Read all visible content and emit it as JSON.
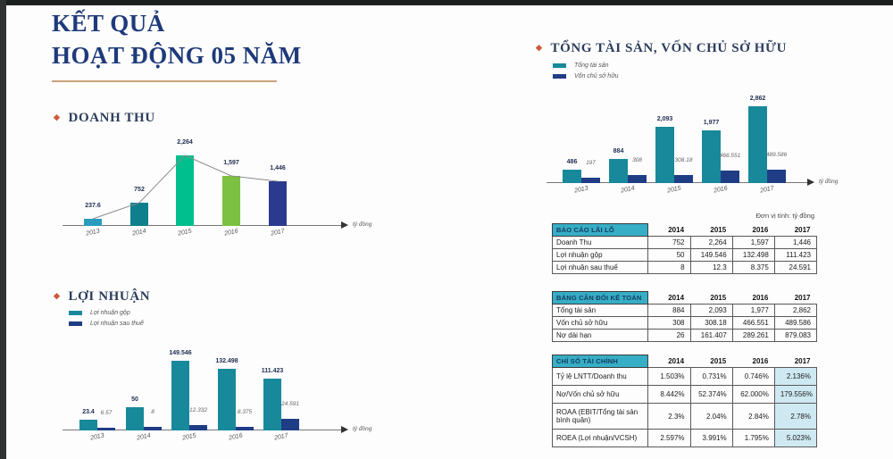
{
  "slide": {
    "title_line1": "KẾT QUẢ",
    "title_line2": "HOẠT ĐỘNG 05 NĂM"
  },
  "unit_note": "Đơn vị tính: tỷ đồng",
  "colors": {
    "accent_teal": "#18899b",
    "accent_navy": "#1f3d85",
    "table_header_bg": "#36aec6",
    "highlight_cell_bg": "#cfe9f2",
    "title_navy": "#1e3a7a",
    "diamond_orange": "#cc5a3c",
    "underline_tan": "#caa27c"
  },
  "chart_data": [
    {
      "id": "doanh_thu",
      "type": "bar",
      "title": "DOANH THU",
      "categories": [
        "2013",
        "2014",
        "2015",
        "2016",
        "2017"
      ],
      "values": [
        237.6,
        752,
        2264,
        1597,
        1446
      ],
      "value_labels": [
        "237.6",
        "752",
        "2,264",
        "1,597",
        "1,446"
      ],
      "bar_colors": [
        "#2a9cc0",
        "#0f7f8e",
        "#00bf8e",
        "#7cc142",
        "#2b3a8f"
      ],
      "line_overlay": true,
      "xlabel_unit": "tỷ đồng",
      "ylim": [
        0,
        2400
      ],
      "grid": false,
      "legend_position": "none"
    },
    {
      "id": "loi_nhuan",
      "type": "bar",
      "title": "LỢI NHUẬN",
      "categories": [
        "2013",
        "2014",
        "2015",
        "2016",
        "2017"
      ],
      "series": [
        {
          "name": "Lợi nhuận gộp",
          "color": "#18899b",
          "values": [
            23.4,
            50,
            149.546,
            132.498,
            111.423
          ],
          "value_labels": [
            "23.4",
            "50",
            "149.546",
            "132.498",
            "111.423"
          ]
        },
        {
          "name": "Lợi nhuận sau thuế",
          "color": "#1f3d85",
          "values": [
            6.57,
            8,
            12.332,
            8.375,
            24.591
          ],
          "value_labels": [
            "6.57",
            "8",
            "12.332",
            "8.375",
            "24.591"
          ]
        }
      ],
      "xlabel_unit": "tỷ đồng",
      "ylim": [
        0,
        160
      ],
      "grid": false,
      "legend_position": "top-left"
    },
    {
      "id": "tong_tai_san_von_chu_so_huu",
      "type": "bar",
      "title": "TỔNG TÀI SẢN, VỐN CHỦ SỞ HỮU",
      "categories": [
        "2013",
        "2014",
        "2015",
        "2016",
        "2017"
      ],
      "series": [
        {
          "name": "Tổng tài sản",
          "color": "#18899b",
          "values": [
            486,
            884,
            2093,
            1977,
            2862
          ],
          "value_labels": [
            "486",
            "884",
            "2,093",
            "1,977",
            "2,862"
          ]
        },
        {
          "name": "Vốn chủ sở hữu",
          "color": "#1f3d85",
          "values": [
            197,
            308,
            308.18,
            466.551,
            489.586
          ],
          "value_labels": [
            "197",
            "308",
            "308.18",
            "466.551",
            "489.586"
          ]
        }
      ],
      "xlabel_unit": "tỷ đồng",
      "ylim": [
        0,
        3000
      ],
      "grid": false,
      "legend_position": "top-left"
    }
  ],
  "tables": [
    {
      "id": "bao_cao_lai_lo",
      "title": "BÁO CÁO LÃI LỖ",
      "years": [
        "2014",
        "2015",
        "2016",
        "2017"
      ],
      "rows": [
        {
          "label": "Doanh Thu",
          "values": [
            "752",
            "2,264",
            "1,597",
            "1,446"
          ]
        },
        {
          "label": "Lợi nhuận gộp",
          "values": [
            "50",
            "149.546",
            "132.498",
            "111.423"
          ]
        },
        {
          "label": "Lợi nhuận sau thuế",
          "values": [
            "8",
            "12.3",
            "8.375",
            "24.591"
          ]
        }
      ],
      "highlight_last_col": false
    },
    {
      "id": "bang_can_doi_ke_toan",
      "title": "BẢNG CÂN ĐỐI KẾ TOÁN",
      "years": [
        "2014",
        "2015",
        "2016",
        "2017"
      ],
      "rows": [
        {
          "label": "Tổng tài sản",
          "values": [
            "884",
            "2,093",
            "1,977",
            "2,862"
          ]
        },
        {
          "label": "Vốn chủ sở hữu",
          "values": [
            "308",
            "308.18",
            "466.551",
            "489.586"
          ]
        },
        {
          "label": "Nợ dài hạn",
          "values": [
            "26",
            "161.407",
            "289.261",
            "879.083"
          ]
        }
      ],
      "highlight_last_col": false
    },
    {
      "id": "chi_so_tai_chinh",
      "title": "CHỈ SỐ TÀI CHÍNH",
      "years": [
        "2014",
        "2015",
        "2016",
        "2017"
      ],
      "rows": [
        {
          "label": "Tỷ lệ LNTT/Doanh thu",
          "values": [
            "1.503%",
            "0.731%",
            "0.746%",
            "2.136%"
          ]
        },
        {
          "label": "Nợ/Vốn chủ sở hữu",
          "values": [
            "8.442%",
            "52.374%",
            "62.000%",
            "179.556%"
          ]
        },
        {
          "label": "ROAA (EBIT/Tổng tài sản bình quân)",
          "values": [
            "2.3%",
            "2.04%",
            "2.84%",
            "2.78%"
          ]
        },
        {
          "label": "ROEA (Lợi nhuận/VCSH)",
          "values": [
            "2.597%",
            "3.991%",
            "1.795%",
            "5.023%"
          ]
        }
      ],
      "highlight_last_col": true
    }
  ]
}
